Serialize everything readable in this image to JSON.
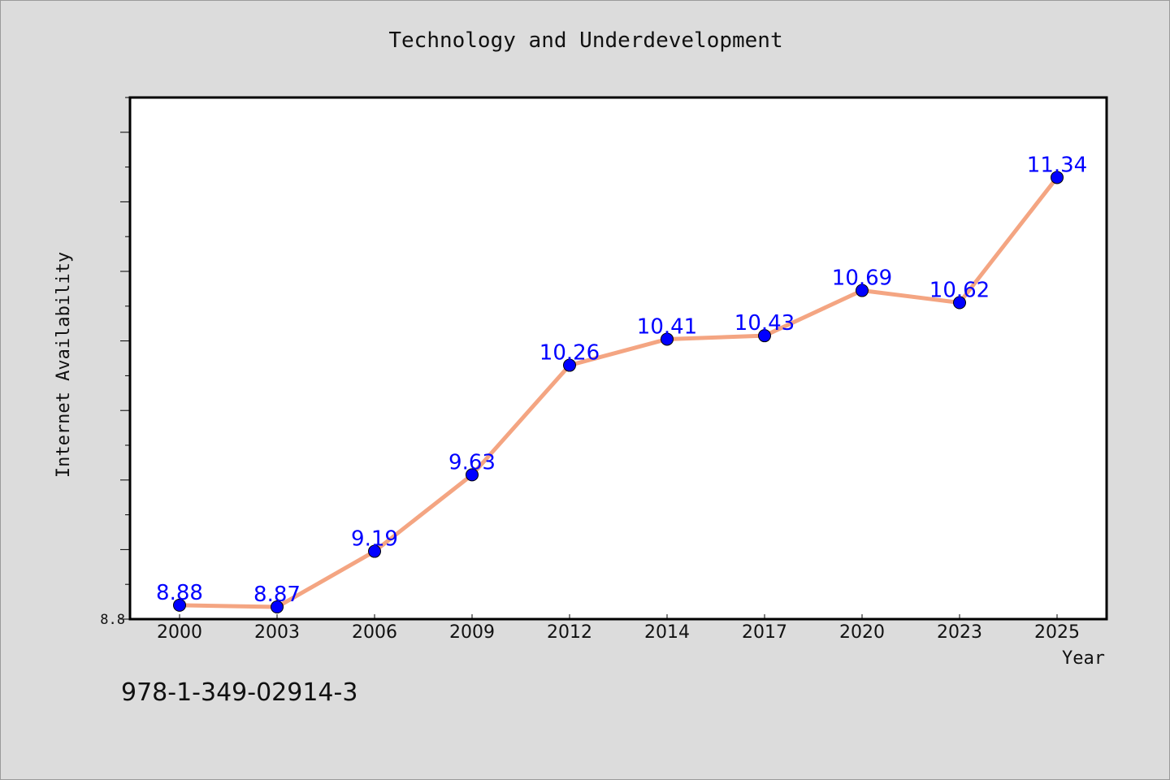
{
  "chart_data": {
    "type": "line",
    "title": "Technology and Underdevelopment",
    "xlabel": "Year",
    "ylabel": "Internet Availability",
    "categories": [
      "2000",
      "2003",
      "2006",
      "2009",
      "2012",
      "2014",
      "2017",
      "2020",
      "2023",
      "2025"
    ],
    "series": [
      {
        "values": [
          8.88,
          8.87,
          9.19,
          9.63,
          10.26,
          10.41,
          10.43,
          10.69,
          10.62,
          11.34
        ]
      }
    ],
    "ylim": [
      8.8,
      11.8
    ],
    "yticks_labeled": [
      "8.8"
    ],
    "data_labels": [
      "8.88",
      "8.87",
      "9.19",
      "9.63",
      "10.26",
      "10.41",
      "10.43",
      "10.69",
      "10.62",
      "11.34"
    ],
    "grid": false,
    "colors": {
      "line": "#f4a582",
      "marker": "#0000ff",
      "label": "#0000ff",
      "background": "#dcdcdc",
      "plot_background": "#ffffff"
    }
  },
  "footer": {
    "isbn": "978-1-349-02914-3"
  }
}
